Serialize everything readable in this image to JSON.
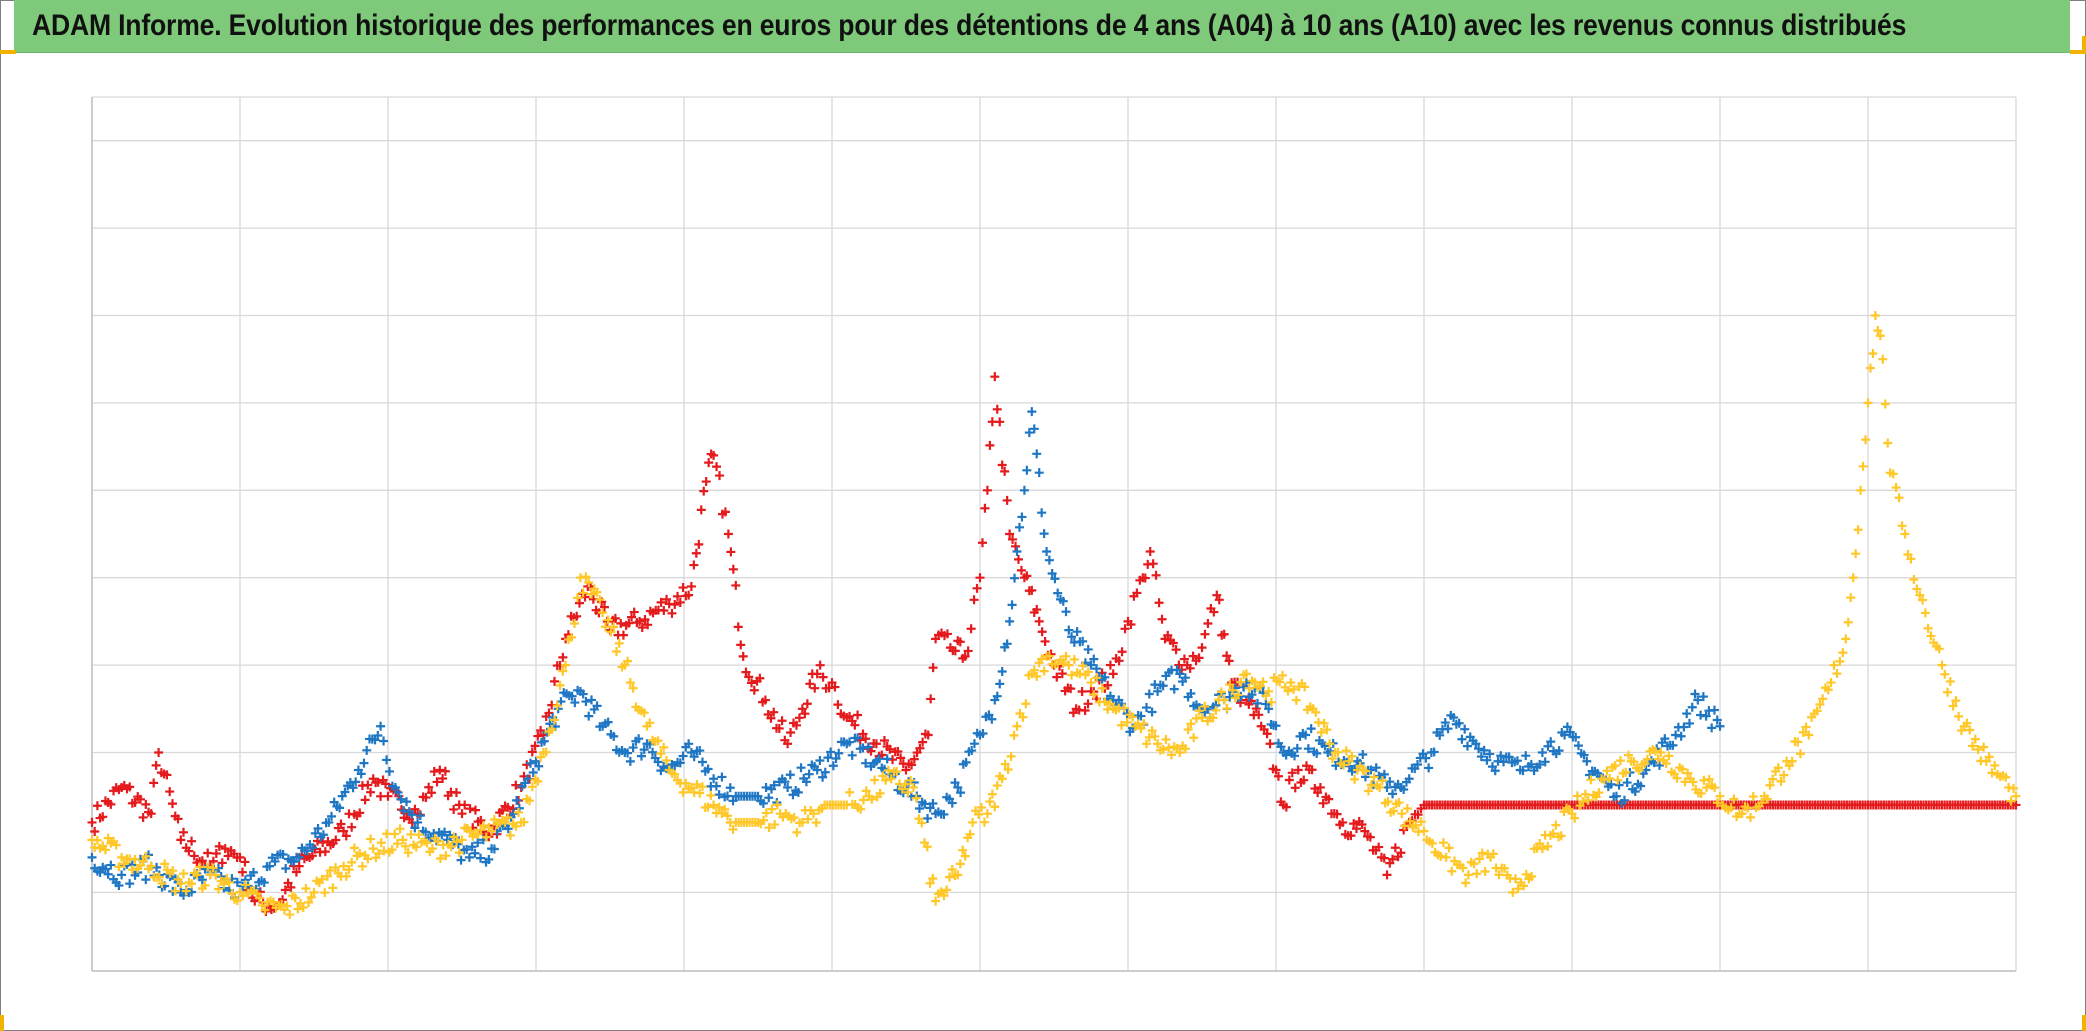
{
  "title": "ADAM Informe. Evolution historique des performances en euros pour des détentions de 4 ans (A04) à 10 ans (A10) avec les revenus connus distribués",
  "colors": {
    "title_bg": "#7fc97a",
    "grid": "#d9d9d9",
    "frame": "#7f7f7f",
    "corner_marks": "#f0b400"
  },
  "chart_data": {
    "type": "scatter",
    "marker": "plus",
    "title": "ADAM Informe. Evolution historique des performances en euros pour des détentions de 4 ans (A04) à 10 ans (A10) avec les revenus connus distribués",
    "xlabel": "",
    "ylabel": "",
    "tick_labels_shown": false,
    "grid": true,
    "xlim": [
      0,
      13
    ],
    "ylim": [
      -1.5,
      8.5
    ],
    "x_gridlines": 13,
    "y_gridlines": [
      -1.5,
      -0.6,
      1,
      2,
      3,
      4,
      5,
      6,
      7,
      8,
      8.5
    ],
    "series": [
      {
        "color": "#e41a1c",
        "points": [
          [
            0.0,
            0.2
          ],
          [
            0.2,
            0.6
          ],
          [
            0.4,
            0.3
          ],
          [
            0.45,
            1.0
          ],
          [
            0.6,
            0.0
          ],
          [
            0.8,
            -0.3
          ],
          [
            0.9,
            -0.1
          ],
          [
            1.0,
            -0.2
          ],
          [
            1.1,
            -0.7
          ],
          [
            1.25,
            -0.75
          ],
          [
            1.4,
            -0.3
          ],
          [
            1.7,
            0.1
          ],
          [
            1.9,
            0.7
          ],
          [
            2.0,
            0.5
          ],
          [
            2.2,
            0.3
          ],
          [
            2.35,
            0.8
          ],
          [
            2.5,
            0.3
          ],
          [
            2.7,
            0.1
          ],
          [
            2.9,
            0.6
          ],
          [
            3.05,
            1.2
          ],
          [
            3.2,
            2.3
          ],
          [
            3.35,
            2.9
          ],
          [
            3.5,
            2.4
          ],
          [
            3.7,
            2.5
          ],
          [
            3.9,
            2.7
          ],
          [
            4.05,
            2.9
          ],
          [
            4.15,
            4.1
          ],
          [
            4.2,
            4.4
          ],
          [
            4.3,
            3.5
          ],
          [
            4.4,
            2.1
          ],
          [
            4.55,
            1.6
          ],
          [
            4.7,
            1.1
          ],
          [
            4.8,
            1.5
          ],
          [
            4.9,
            1.9
          ],
          [
            5.0,
            1.8
          ],
          [
            5.1,
            1.4
          ],
          [
            5.3,
            1.1
          ],
          [
            5.5,
            0.8
          ],
          [
            5.65,
            1.2
          ],
          [
            5.7,
            2.3
          ],
          [
            5.8,
            2.2
          ],
          [
            5.9,
            2.1
          ],
          [
            6.0,
            3.0
          ],
          [
            6.05,
            4.0
          ],
          [
            6.1,
            5.3
          ],
          [
            6.2,
            3.5
          ],
          [
            6.3,
            3.0
          ],
          [
            6.4,
            2.5
          ],
          [
            6.5,
            2.0
          ],
          [
            6.65,
            1.5
          ],
          [
            6.75,
            1.7
          ],
          [
            6.9,
            1.9
          ],
          [
            7.0,
            2.5
          ],
          [
            7.1,
            3.0
          ],
          [
            7.15,
            3.3
          ],
          [
            7.25,
            2.3
          ],
          [
            7.4,
            2.0
          ],
          [
            7.5,
            2.2
          ],
          [
            7.6,
            2.8
          ],
          [
            7.7,
            1.8
          ],
          [
            7.8,
            1.6
          ],
          [
            7.9,
            1.3
          ],
          [
            8.0,
            0.8
          ],
          [
            8.05,
            0.4
          ],
          [
            8.15,
            0.8
          ],
          [
            8.3,
            0.6
          ],
          [
            8.45,
            0.2
          ],
          [
            8.6,
            0.1
          ],
          [
            8.75,
            -0.4
          ],
          [
            8.9,
            0.2
          ],
          [
            9.0,
            0.4
          ],
          [
            9.5,
            0.4
          ],
          [
            10.0,
            0.4
          ],
          [
            10.5,
            0.4
          ],
          [
            11.0,
            0.4
          ],
          [
            11.5,
            0.4
          ],
          [
            12.0,
            0.4
          ],
          [
            12.5,
            0.4
          ],
          [
            13.0,
            0.4
          ]
        ]
      },
      {
        "color": "#1f77c4",
        "points": [
          [
            0.0,
            -0.2
          ],
          [
            0.2,
            -0.4
          ],
          [
            0.4,
            -0.3
          ],
          [
            0.6,
            -0.6
          ],
          [
            0.8,
            -0.4
          ],
          [
            1.0,
            -0.6
          ],
          [
            1.2,
            -0.3
          ],
          [
            1.4,
            -0.2
          ],
          [
            1.6,
            0.2
          ],
          [
            1.8,
            0.8
          ],
          [
            1.95,
            1.3
          ],
          [
            2.05,
            0.6
          ],
          [
            2.2,
            0.2
          ],
          [
            2.4,
            0.0
          ],
          [
            2.55,
            -0.2
          ],
          [
            2.7,
            -0.1
          ],
          [
            2.85,
            0.3
          ],
          [
            3.0,
            0.9
          ],
          [
            3.15,
            1.5
          ],
          [
            3.3,
            1.7
          ],
          [
            3.45,
            1.3
          ],
          [
            3.6,
            1.0
          ],
          [
            3.75,
            1.1
          ],
          [
            3.9,
            0.8
          ],
          [
            4.05,
            1.0
          ],
          [
            4.2,
            0.7
          ],
          [
            4.35,
            0.5
          ],
          [
            4.5,
            0.5
          ],
          [
            4.7,
            0.6
          ],
          [
            4.9,
            0.8
          ],
          [
            5.1,
            1.1
          ],
          [
            5.3,
            0.9
          ],
          [
            5.5,
            0.6
          ],
          [
            5.7,
            0.3
          ],
          [
            5.85,
            0.6
          ],
          [
            6.0,
            1.2
          ],
          [
            6.1,
            1.6
          ],
          [
            6.2,
            2.5
          ],
          [
            6.25,
            3.3
          ],
          [
            6.3,
            4.0
          ],
          [
            6.35,
            4.9
          ],
          [
            6.45,
            3.3
          ],
          [
            6.6,
            2.4
          ],
          [
            6.75,
            2.0
          ],
          [
            6.9,
            1.6
          ],
          [
            7.05,
            1.3
          ],
          [
            7.2,
            1.7
          ],
          [
            7.35,
            1.9
          ],
          [
            7.5,
            1.5
          ],
          [
            7.65,
            1.6
          ],
          [
            7.8,
            1.8
          ],
          [
            7.95,
            1.5
          ],
          [
            8.05,
            1.0
          ],
          [
            8.2,
            1.2
          ],
          [
            8.35,
            1.0
          ],
          [
            8.55,
            0.9
          ],
          [
            8.75,
            0.6
          ],
          [
            8.9,
            0.7
          ],
          [
            9.05,
            1.0
          ],
          [
            9.2,
            1.4
          ],
          [
            9.35,
            1.1
          ],
          [
            9.5,
            0.9
          ],
          [
            9.65,
            0.8
          ],
          [
            9.8,
            1.0
          ],
          [
            9.95,
            1.2
          ],
          [
            10.1,
            0.9
          ],
          [
            10.3,
            0.5
          ],
          [
            10.5,
            0.8
          ],
          [
            10.7,
            1.2
          ],
          [
            10.85,
            1.6
          ],
          [
            11.0,
            1.3
          ]
        ]
      },
      {
        "color": "#ffc727",
        "points": [
          [
            0.0,
            0.0
          ],
          [
            0.2,
            -0.2
          ],
          [
            0.4,
            -0.3
          ],
          [
            0.6,
            -0.5
          ],
          [
            0.8,
            -0.4
          ],
          [
            1.0,
            -0.6
          ],
          [
            1.15,
            -0.75
          ],
          [
            1.3,
            -0.8
          ],
          [
            1.5,
            -0.6
          ],
          [
            1.7,
            -0.3
          ],
          [
            1.9,
            -0.1
          ],
          [
            2.1,
            0.0
          ],
          [
            2.3,
            -0.1
          ],
          [
            2.5,
            0.0
          ],
          [
            2.7,
            0.1
          ],
          [
            2.9,
            0.2
          ],
          [
            3.05,
            1.0
          ],
          [
            3.2,
            2.0
          ],
          [
            3.3,
            3.0
          ],
          [
            3.45,
            2.6
          ],
          [
            3.6,
            2.0
          ],
          [
            3.75,
            1.3
          ],
          [
            3.9,
            0.8
          ],
          [
            4.05,
            0.6
          ],
          [
            4.2,
            0.4
          ],
          [
            4.35,
            0.2
          ],
          [
            4.5,
            0.2
          ],
          [
            4.65,
            0.3
          ],
          [
            4.8,
            0.2
          ],
          [
            4.95,
            0.4
          ],
          [
            5.1,
            0.4
          ],
          [
            5.25,
            0.5
          ],
          [
            5.4,
            0.7
          ],
          [
            5.55,
            0.6
          ],
          [
            5.7,
            -0.7
          ],
          [
            5.85,
            -0.4
          ],
          [
            5.95,
            0.2
          ],
          [
            6.05,
            0.3
          ],
          [
            6.15,
            0.7
          ],
          [
            6.25,
            1.3
          ],
          [
            6.35,
            1.9
          ],
          [
            6.45,
            2.1
          ],
          [
            6.6,
            2.0
          ],
          [
            6.75,
            1.8
          ],
          [
            6.9,
            1.5
          ],
          [
            7.05,
            1.3
          ],
          [
            7.2,
            1.1
          ],
          [
            7.35,
            1.0
          ],
          [
            7.5,
            1.4
          ],
          [
            7.65,
            1.6
          ],
          [
            7.8,
            1.9
          ],
          [
            7.95,
            1.7
          ],
          [
            8.1,
            1.8
          ],
          [
            8.25,
            1.5
          ],
          [
            8.4,
            1.0
          ],
          [
            8.55,
            0.8
          ],
          [
            8.7,
            0.6
          ],
          [
            8.85,
            0.3
          ],
          [
            9.0,
            0.1
          ],
          [
            9.15,
            -0.2
          ],
          [
            9.3,
            -0.4
          ],
          [
            9.45,
            -0.2
          ],
          [
            9.6,
            -0.6
          ],
          [
            9.8,
            -0.1
          ],
          [
            10.0,
            0.3
          ],
          [
            10.2,
            0.7
          ],
          [
            10.4,
            0.9
          ],
          [
            10.6,
            1.0
          ],
          [
            10.8,
            0.7
          ],
          [
            11.0,
            0.5
          ],
          [
            11.15,
            0.3
          ],
          [
            11.3,
            0.5
          ],
          [
            11.45,
            0.9
          ],
          [
            11.6,
            1.2
          ],
          [
            11.75,
            1.8
          ],
          [
            11.85,
            2.3
          ],
          [
            11.9,
            3.0
          ],
          [
            11.95,
            4.0
          ],
          [
            12.0,
            5.0
          ],
          [
            12.05,
            6.0
          ],
          [
            12.1,
            5.5
          ],
          [
            12.15,
            4.2
          ],
          [
            12.25,
            3.5
          ],
          [
            12.35,
            2.8
          ],
          [
            12.5,
            2.0
          ],
          [
            12.65,
            1.3
          ],
          [
            12.8,
            0.9
          ],
          [
            12.95,
            0.6
          ],
          [
            13.0,
            0.5
          ]
        ]
      }
    ]
  }
}
